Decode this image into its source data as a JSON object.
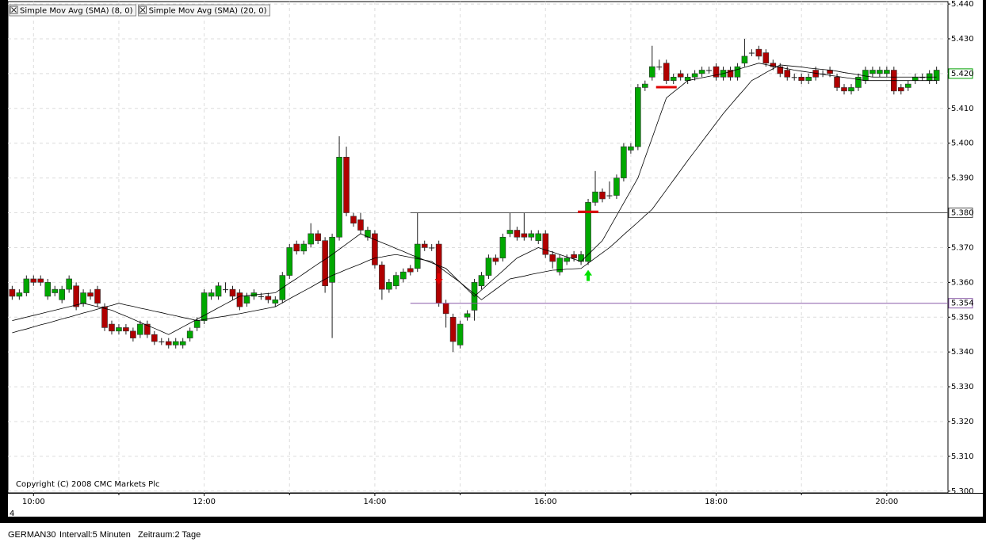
{
  "chart_data": {
    "type": "candlestick",
    "x": [
      585,
      590,
      595,
      600,
      605,
      610,
      615,
      620,
      625,
      630,
      635,
      640,
      645,
      650,
      655,
      660,
      665,
      670,
      675,
      680,
      685,
      690,
      695,
      700,
      705,
      710,
      715,
      720,
      725,
      730,
      735,
      740,
      745,
      750,
      755,
      760,
      765,
      770,
      775,
      780,
      785,
      790,
      795,
      800,
      805,
      810,
      815,
      820,
      825,
      830,
      835,
      840,
      845,
      850,
      855,
      860,
      865,
      870,
      875,
      880,
      885,
      890,
      895,
      900,
      905,
      910,
      915,
      920,
      925,
      930,
      935,
      940,
      945,
      950,
      955,
      960,
      965,
      970,
      975,
      980,
      985,
      990,
      995,
      1000,
      1005,
      1010,
      1015,
      1020,
      1025,
      1030,
      1035,
      1040,
      1045,
      1050,
      1055,
      1060,
      1065,
      1070,
      1075,
      1080,
      1085,
      1090,
      1095,
      1100,
      1105,
      1110,
      1115,
      1120,
      1125,
      1130,
      1135,
      1140,
      1145,
      1150,
      1155,
      1160,
      1165,
      1170,
      1175,
      1180,
      1185,
      1190,
      1195,
      1200,
      1205,
      1210,
      1215,
      1220,
      1225,
      1230,
      1235
    ],
    "open": [
      5.358,
      5.356,
      5.357,
      5.361,
      5.361,
      5.356,
      5.357,
      5.355,
      5.358,
      5.359,
      5.354,
      5.357,
      5.358,
      5.353,
      5.348,
      5.346,
      5.347,
      5.346,
      5.345,
      5.348,
      5.345,
      5.343,
      5.343,
      5.342,
      5.342,
      5.344,
      5.347,
      5.349,
      5.356,
      5.356,
      5.358,
      5.358,
      5.357,
      5.354,
      5.356,
      5.356,
      5.356,
      5.354,
      5.355,
      5.362,
      5.371,
      5.369,
      5.371,
      5.374,
      5.372,
      5.36,
      5.373,
      5.396,
      5.379,
      5.378,
      5.373,
      5.374,
      5.365,
      5.358,
      5.359,
      5.361,
      5.364,
      5.364,
      5.371,
      5.37,
      5.371,
      5.354,
      5.35,
      5.342,
      5.35,
      5.352,
      5.359,
      5.362,
      5.367,
      5.367,
      5.374,
      5.375,
      5.374,
      5.373,
      5.372,
      5.374,
      5.368,
      5.363,
      5.366,
      5.368,
      5.366,
      5.366,
      5.383,
      5.386,
      5.385,
      5.385,
      5.39,
      5.398,
      5.399,
      5.416,
      5.419,
      5.422,
      5.423,
      5.418,
      5.42,
      5.418,
      5.419,
      5.42,
      5.421,
      5.422,
      5.419,
      5.421,
      5.419,
      5.423,
      5.426,
      5.427,
      5.426,
      5.423,
      5.422,
      5.421,
      5.419,
      5.419,
      5.418,
      5.421,
      5.42,
      5.421,
      5.419,
      5.416,
      5.415,
      5.416,
      5.418,
      5.42,
      5.42,
      5.42,
      5.421,
      5.416,
      5.416,
      5.418,
      5.419,
      5.418,
      5.418
    ],
    "high": [
      5.359,
      5.358,
      5.362,
      5.362,
      5.362,
      5.361,
      5.359,
      5.359,
      5.362,
      5.36,
      5.358,
      5.358,
      5.359,
      5.354,
      5.349,
      5.348,
      5.348,
      5.347,
      5.349,
      5.349,
      5.346,
      5.344,
      5.344,
      5.344,
      5.344,
      5.347,
      5.35,
      5.358,
      5.358,
      5.36,
      5.36,
      5.359,
      5.358,
      5.357,
      5.358,
      5.357,
      5.357,
      5.356,
      5.363,
      5.371,
      5.372,
      5.372,
      5.377,
      5.375,
      5.373,
      5.374,
      5.402,
      5.399,
      5.38,
      5.38,
      5.376,
      5.375,
      5.366,
      5.361,
      5.363,
      5.364,
      5.365,
      5.38,
      5.372,
      5.371,
      5.372,
      5.355,
      5.351,
      5.349,
      5.352,
      5.361,
      5.363,
      5.368,
      5.368,
      5.374,
      5.38,
      5.376,
      5.38,
      5.375,
      5.375,
      5.375,
      5.369,
      5.368,
      5.368,
      5.369,
      5.369,
      5.384,
      5.392,
      5.387,
      5.389,
      5.391,
      5.4,
      5.4,
      5.417,
      5.418,
      5.428,
      5.424,
      5.424,
      5.42,
      5.421,
      5.42,
      5.421,
      5.422,
      5.422,
      5.423,
      5.422,
      5.422,
      5.423,
      5.43,
      5.427,
      5.428,
      5.427,
      5.424,
      5.423,
      5.422,
      5.42,
      5.42,
      5.42,
      5.422,
      5.421,
      5.422,
      5.42,
      5.417,
      5.417,
      5.42,
      5.422,
      5.422,
      5.422,
      5.422,
      5.422,
      5.417,
      5.418,
      5.42,
      5.42,
      5.421,
      5.422
    ],
    "low": [
      5.355,
      5.355,
      5.356,
      5.359,
      5.359,
      5.355,
      5.356,
      5.354,
      5.357,
      5.352,
      5.353,
      5.355,
      5.353,
      5.346,
      5.345,
      5.345,
      5.345,
      5.343,
      5.344,
      5.344,
      5.342,
      5.342,
      5.341,
      5.341,
      5.341,
      5.343,
      5.346,
      5.348,
      5.355,
      5.355,
      5.357,
      5.355,
      5.352,
      5.353,
      5.355,
      5.355,
      5.354,
      5.353,
      5.354,
      5.361,
      5.368,
      5.368,
      5.37,
      5.371,
      5.357,
      5.344,
      5.372,
      5.379,
      5.376,
      5.374,
      5.372,
      5.364,
      5.355,
      5.357,
      5.358,
      5.36,
      5.362,
      5.363,
      5.369,
      5.369,
      5.353,
      5.347,
      5.34,
      5.341,
      5.349,
      5.349,
      5.358,
      5.361,
      5.365,
      5.366,
      5.373,
      5.372,
      5.372,
      5.372,
      5.371,
      5.367,
      5.364,
      5.362,
      5.365,
      5.366,
      5.365,
      5.365,
      5.382,
      5.383,
      5.384,
      5.384,
      5.389,
      5.397,
      5.398,
      5.415,
      5.418,
      5.421,
      5.417,
      5.417,
      5.418,
      5.417,
      5.418,
      5.419,
      5.42,
      5.418,
      5.418,
      5.418,
      5.418,
      5.422,
      5.425,
      5.424,
      5.422,
      5.421,
      5.419,
      5.418,
      5.418,
      5.417,
      5.417,
      5.418,
      5.419,
      5.419,
      5.415,
      5.414,
      5.414,
      5.415,
      5.417,
      5.419,
      5.419,
      5.419,
      5.414,
      5.414,
      5.415,
      5.417,
      5.418,
      5.417,
      5.417
    ],
    "close": [
      5.356,
      5.357,
      5.361,
      5.36,
      5.36,
      5.36,
      5.358,
      5.358,
      5.361,
      5.353,
      5.357,
      5.356,
      5.354,
      5.347,
      5.346,
      5.347,
      5.346,
      5.344,
      5.348,
      5.345,
      5.343,
      5.343,
      5.342,
      5.343,
      5.343,
      5.346,
      5.349,
      5.357,
      5.357,
      5.359,
      5.358,
      5.356,
      5.353,
      5.356,
      5.357,
      5.356,
      5.355,
      5.355,
      5.362,
      5.37,
      5.369,
      5.371,
      5.374,
      5.372,
      5.359,
      5.373,
      5.396,
      5.38,
      5.377,
      5.375,
      5.375,
      5.365,
      5.358,
      5.36,
      5.362,
      5.363,
      5.363,
      5.371,
      5.37,
      5.37,
      5.354,
      5.351,
      5.343,
      5.348,
      5.351,
      5.36,
      5.362,
      5.367,
      5.366,
      5.373,
      5.375,
      5.373,
      5.373,
      5.374,
      5.374,
      5.368,
      5.366,
      5.367,
      5.367,
      5.367,
      5.368,
      5.383,
      5.386,
      5.384,
      5.385,
      5.39,
      5.399,
      5.399,
      5.416,
      5.417,
      5.422,
      5.422,
      5.418,
      5.419,
      5.419,
      5.419,
      5.42,
      5.421,
      5.421,
      5.419,
      5.421,
      5.419,
      5.422,
      5.425,
      5.426,
      5.425,
      5.423,
      5.422,
      5.42,
      5.419,
      5.419,
      5.418,
      5.419,
      5.419,
      5.42,
      5.42,
      5.416,
      5.415,
      5.416,
      5.419,
      5.421,
      5.421,
      5.421,
      5.421,
      5.415,
      5.415,
      5.417,
      5.419,
      5.419,
      5.42,
      5.421
    ],
    "up_color": "#00a800",
    "down_color": "#b00000",
    "wick_color": "#202020",
    "series": [
      {
        "name": "Simple Mov Avg (SMA) (8, 0)",
        "color": "#000000",
        "values": [
          5.349,
          5.3495,
          5.35,
          5.3505,
          5.351,
          5.3515,
          5.352,
          5.3525,
          5.353,
          5.3535,
          5.354,
          5.3535,
          5.353,
          5.3525,
          5.352,
          5.3511,
          5.3503,
          5.3494,
          5.3485,
          5.3476,
          5.3468,
          5.3459,
          5.345,
          5.3461,
          5.3472,
          5.3483,
          5.3494,
          5.3505,
          5.3516,
          5.3527,
          5.3538,
          5.3549,
          5.356,
          5.3562,
          5.3564,
          5.3566,
          5.3568,
          5.357,
          5.3584,
          5.3598,
          5.3611,
          5.3625,
          5.3639,
          5.3653,
          5.3666,
          5.368,
          5.3695,
          5.371,
          5.3725,
          5.374,
          5.3731,
          5.3723,
          5.3714,
          5.3706,
          5.3697,
          5.3689,
          5.368,
          5.3672,
          5.3664,
          5.3656,
          5.3648,
          5.364,
          5.362,
          5.36,
          5.358,
          5.356,
          5.3578,
          5.3597,
          5.3615,
          5.3633,
          5.3652,
          5.367,
          5.368,
          5.369,
          5.37,
          5.3693,
          5.3687,
          5.368,
          5.3673,
          5.3667,
          5.366,
          5.368,
          5.37,
          5.372,
          5.3756,
          5.3792,
          5.3828,
          5.3864,
          5.39,
          5.3958,
          5.4015,
          5.4073,
          5.413,
          5.4147,
          5.4163,
          5.418,
          5.4184,
          5.4188,
          5.4192,
          5.4196,
          5.42,
          5.4206,
          5.4212,
          5.4218,
          5.4224,
          5.423,
          5.4226,
          5.4222,
          5.4218,
          5.4214,
          5.421,
          5.4207,
          5.4204,
          5.4201,
          5.4198,
          5.4195,
          5.4192,
          5.4189,
          5.4186,
          5.4183,
          5.418,
          5.418,
          5.418,
          5.418,
          5.418,
          5.418,
          5.418,
          5.418,
          5.418,
          5.418,
          5.418
        ]
      },
      {
        "name": "Simple Mov Avg (SMA) (20, 0)",
        "color": "#000000",
        "values": [
          5.3455,
          5.3461,
          5.3466,
          5.3472,
          5.3478,
          5.3483,
          5.3489,
          5.3495,
          5.35,
          5.3506,
          5.3512,
          5.3517,
          5.3523,
          5.3529,
          5.3534,
          5.354,
          5.3535,
          5.3531,
          5.3526,
          5.3522,
          5.3517,
          5.3513,
          5.3508,
          5.3504,
          5.3499,
          5.3495,
          5.349,
          5.3493,
          5.3497,
          5.35,
          5.3503,
          5.3507,
          5.351,
          5.3514,
          5.3518,
          5.3522,
          5.3526,
          5.353,
          5.3541,
          5.3553,
          5.3564,
          5.3575,
          5.3586,
          5.3598,
          5.3609,
          5.362,
          5.3628,
          5.3637,
          5.3645,
          5.3653,
          5.3662,
          5.367,
          5.3673,
          5.3677,
          5.368,
          5.3676,
          5.3672,
          5.3668,
          5.3664,
          5.366,
          5.3645,
          5.363,
          5.3615,
          5.36,
          5.3583,
          5.3567,
          5.355,
          5.3565,
          5.358,
          5.3595,
          5.361,
          5.3614,
          5.3618,
          5.3623,
          5.3627,
          5.3631,
          5.3635,
          5.3636,
          5.3638,
          5.3639,
          5.364,
          5.3655,
          5.367,
          5.3685,
          5.37,
          5.3718,
          5.3737,
          5.3755,
          5.3773,
          5.3792,
          5.381,
          5.3838,
          5.3866,
          5.3894,
          5.3922,
          5.395,
          5.3977,
          5.4004,
          5.4031,
          5.4058,
          5.4085,
          5.4109,
          5.4133,
          5.4156,
          5.418,
          5.4191,
          5.4203,
          5.4214,
          5.4225,
          5.4223,
          5.4221,
          5.4219,
          5.4216,
          5.4214,
          5.4212,
          5.421,
          5.4207,
          5.4203,
          5.42,
          5.4197,
          5.4193,
          5.419,
          5.419,
          5.419,
          5.419,
          5.419,
          5.419,
          5.419,
          5.419,
          5.419,
          5.419
        ]
      }
    ],
    "xlim": [
      582,
      1243
    ],
    "ylim": [
      5.2995,
      5.4407
    ],
    "xticks": [
      {
        "value": 600,
        "label": "10:00"
      },
      {
        "value": 720,
        "label": "12:00"
      },
      {
        "value": 840,
        "label": "14:00"
      },
      {
        "value": 960,
        "label": "16:00"
      },
      {
        "value": 1080,
        "label": "18:00"
      },
      {
        "value": 1200,
        "label": "20:00"
      }
    ],
    "xminor_ticks": [
      660,
      780,
      900,
      1020,
      1140
    ],
    "yticks": [
      {
        "value": 5.3,
        "label": "5.300"
      },
      {
        "value": 5.31,
        "label": "5.310"
      },
      {
        "value": 5.32,
        "label": "5.320"
      },
      {
        "value": 5.33,
        "label": "5.330"
      },
      {
        "value": 5.34,
        "label": "5.340"
      },
      {
        "value": 5.35,
        "label": "5.350"
      },
      {
        "value": 5.36,
        "label": "5.360"
      },
      {
        "value": 5.37,
        "label": "5.370"
      },
      {
        "value": 5.38,
        "label": "5.380"
      },
      {
        "value": 5.39,
        "label": "5.390"
      },
      {
        "value": 5.4,
        "label": "5.400"
      },
      {
        "value": 5.41,
        "label": "5.410"
      },
      {
        "value": 5.42,
        "label": "5.420"
      },
      {
        "value": 5.43,
        "label": "5.430"
      },
      {
        "value": 5.44,
        "label": "5.440"
      }
    ],
    "grid": true,
    "levels": [
      {
        "value": 5.38,
        "label": "5.380",
        "from": 865,
        "color": "#505050"
      },
      {
        "value": 5.354,
        "label": "5.354",
        "from": 865,
        "color": "#8a5aa8"
      }
    ],
    "current_price": {
      "value": 5.42,
      "label": "5.420",
      "color": "#00a000"
    },
    "signals": [
      {
        "x": 885,
        "value": 5.361,
        "direction": "down",
        "color": "#e00000"
      },
      {
        "x": 990,
        "value": 5.362,
        "direction": "up",
        "color": "#00e000"
      }
    ],
    "stop_marks": [
      {
        "x": 990,
        "value": 5.3803,
        "color": "#e00000"
      },
      {
        "x": 1045,
        "value": 5.4161,
        "color": "#e00000"
      }
    ],
    "copyright": "Copyright (C) 2008 CMC Markets Plc",
    "corner_label": "4"
  },
  "status_bar": {
    "symbol": "GERMAN30",
    "interval": "Intervall:5 Minuten",
    "period": "Zeitraum:2 Tage"
  }
}
